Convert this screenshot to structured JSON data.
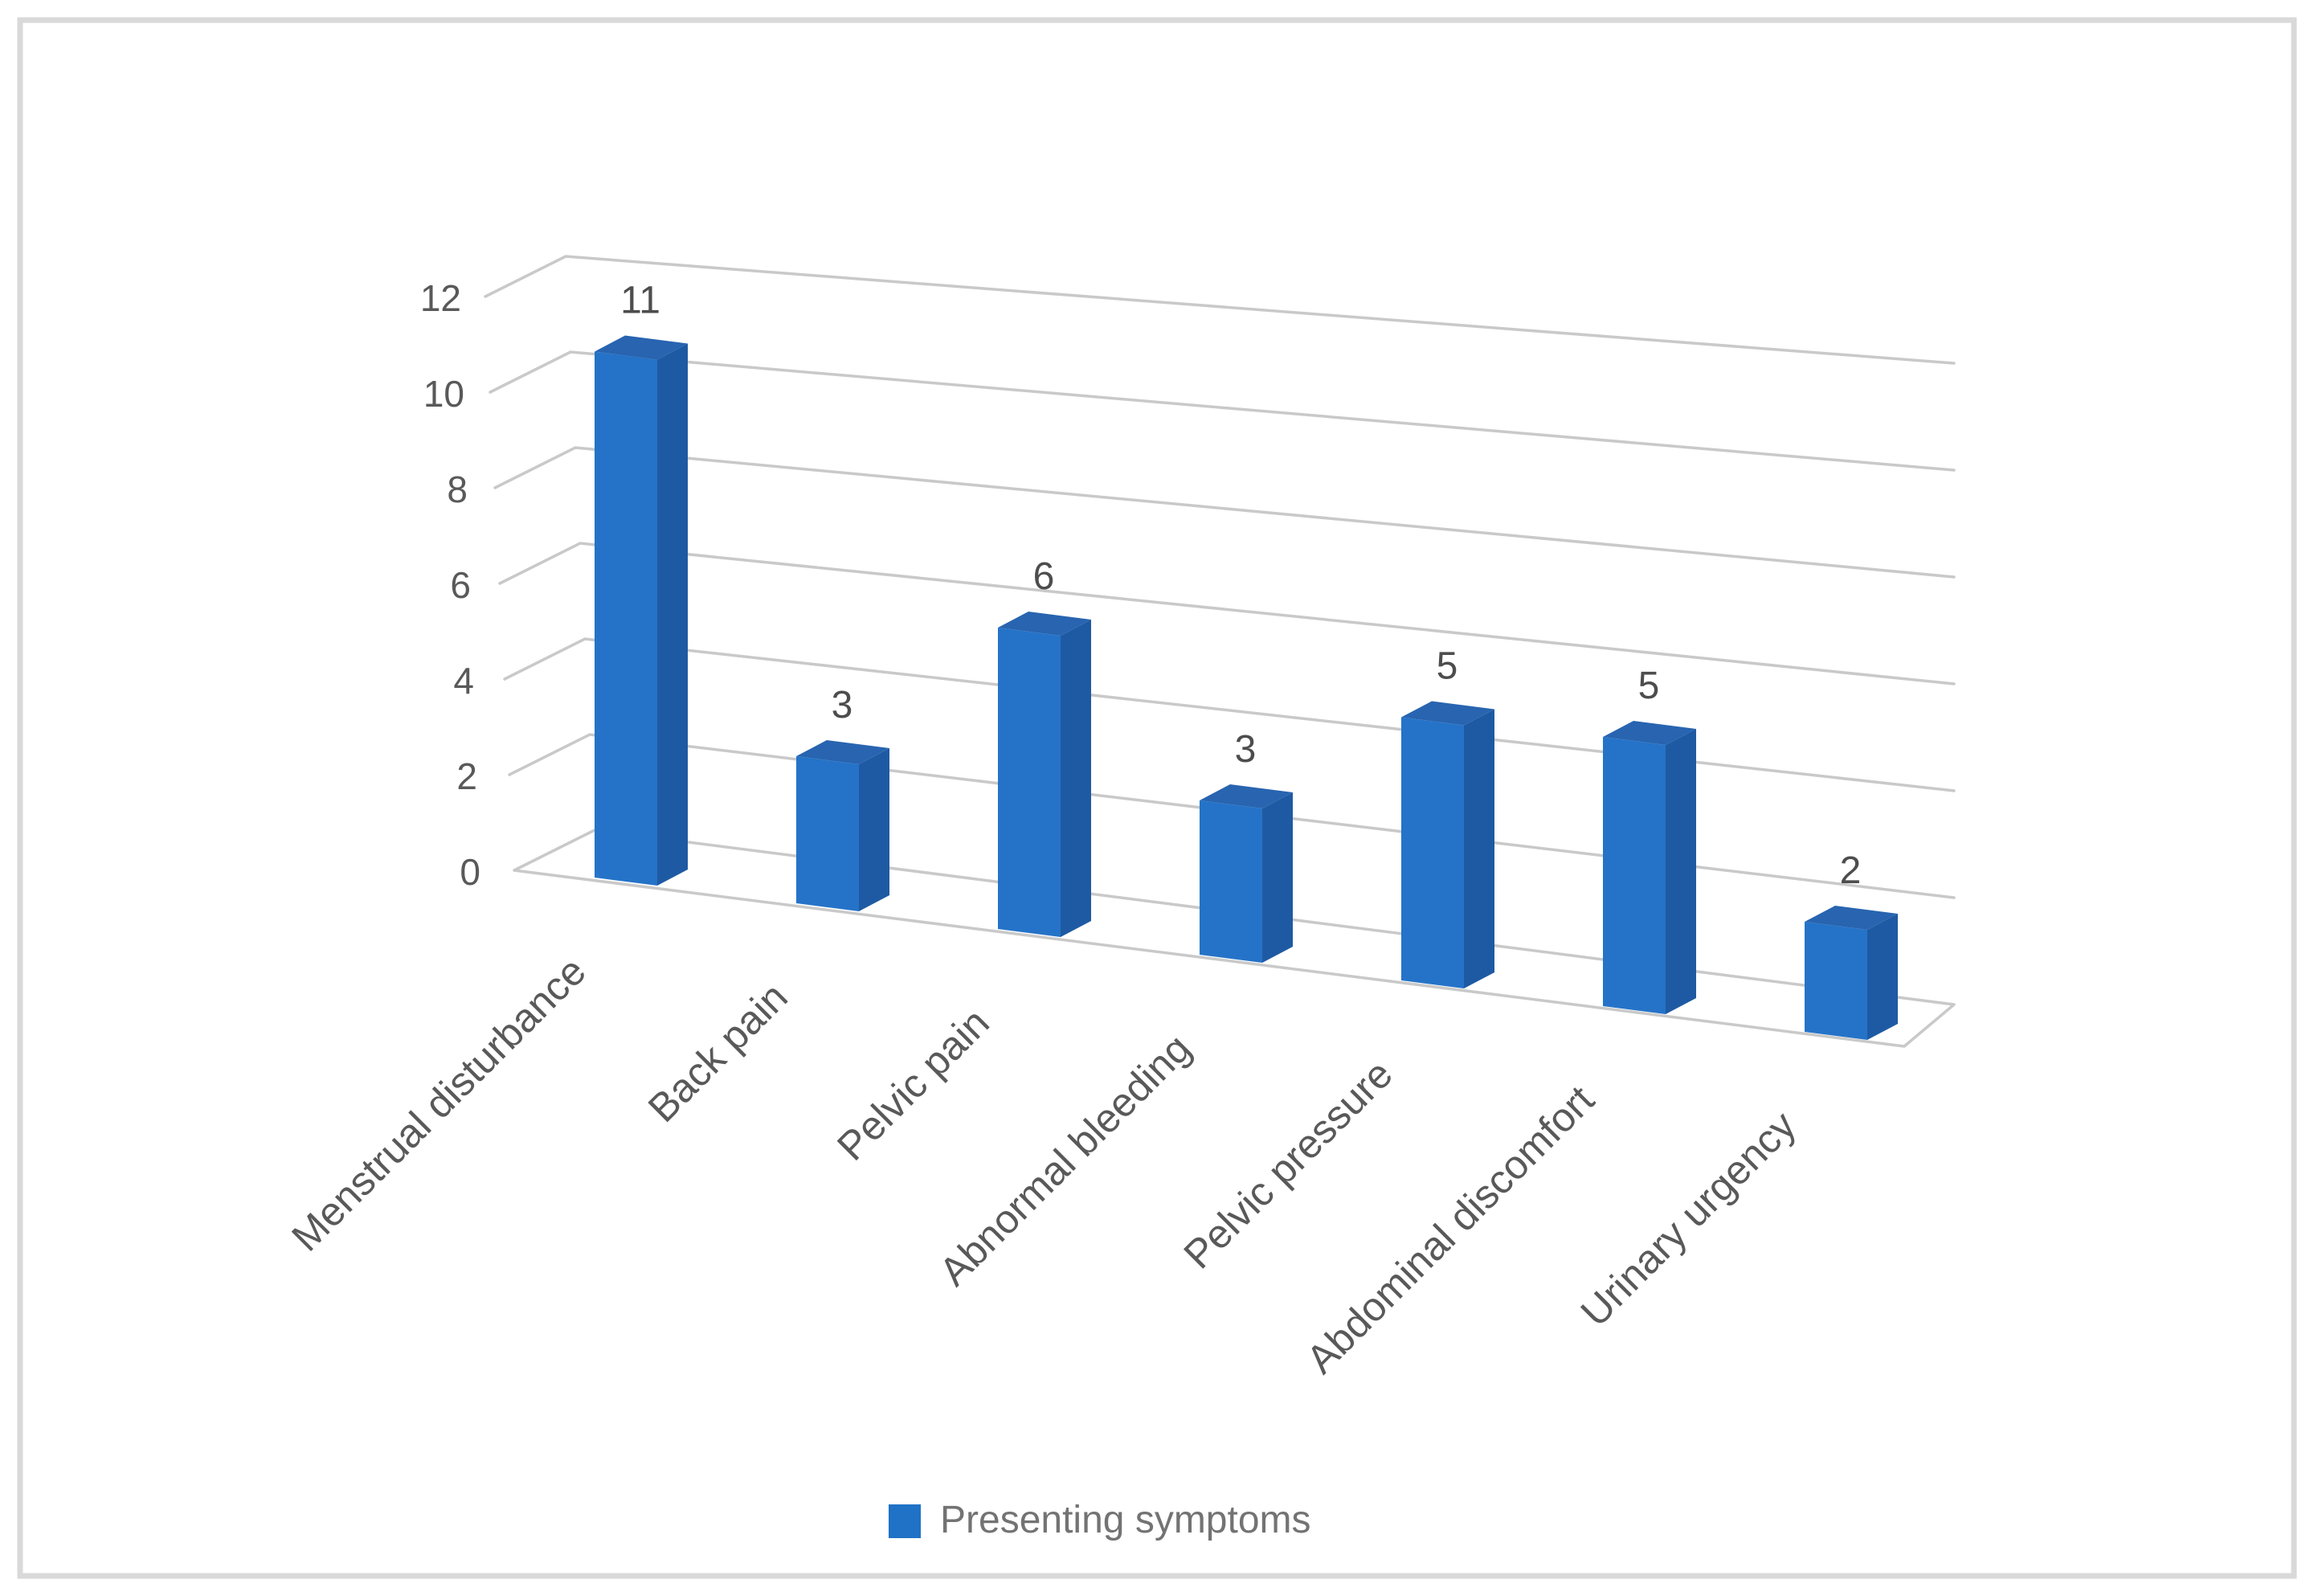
{
  "chart_data": {
    "type": "bar",
    "projection": "3d",
    "title": "",
    "xlabel": "",
    "ylabel": "",
    "categories": [
      "Menstrual disturbance",
      "Back pain",
      "Pelvic pain",
      "Abnormal bleeding",
      "Pelvic pressure",
      "Abdominal discomfort",
      "Urinary urgency"
    ],
    "values": [
      11,
      3,
      6,
      3,
      5,
      5,
      2
    ],
    "value_labels": [
      "11",
      "3",
      "6",
      "3",
      "5",
      "5",
      "2"
    ],
    "yticks": [
      0,
      2,
      4,
      6,
      8,
      10,
      12
    ],
    "ylim": [
      0,
      12
    ],
    "grid": "on",
    "legend": {
      "position": "bottom",
      "entries": [
        {
          "label": "Presenting symptoms",
          "swatch_color": "#1F72C5"
        }
      ]
    },
    "colors": {
      "bar_front": "#2573C8",
      "bar_side": "#1E5AA3",
      "bar_top": "#2864B0",
      "gridline": "#C9C9C9",
      "tick_label": "#595959",
      "value_label": "#4D4D4D",
      "category_label": "#595959",
      "legend_text": "#737373",
      "frame_border": "#D9D9D9",
      "background": "#FFFFFF"
    }
  }
}
